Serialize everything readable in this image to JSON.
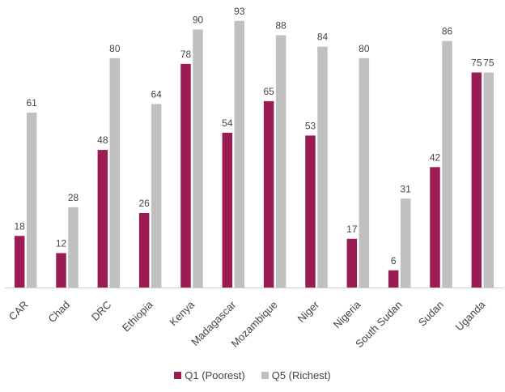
{
  "chart_data": {
    "type": "bar",
    "categories": [
      "CAR",
      "Chad",
      "DRC",
      "Ethiopia",
      "Kenya",
      "Madagascar",
      "Mozambique",
      "Niger",
      "Nigeria",
      "South Sudan",
      "Sudan",
      "Uganda"
    ],
    "series": [
      {
        "name": "Q1 (Poorest)",
        "color": "#9b1b55",
        "values": [
          18,
          12,
          48,
          26,
          78,
          54,
          65,
          53,
          17,
          6,
          42,
          75
        ]
      },
      {
        "name": "Q5 (Richest)",
        "color": "#c0c0c0",
        "values": [
          61,
          28,
          80,
          64,
          90,
          93,
          88,
          84,
          80,
          31,
          86,
          75
        ]
      }
    ],
    "ylim": [
      0,
      100
    ],
    "grid": false,
    "legend_position": "bottom"
  }
}
